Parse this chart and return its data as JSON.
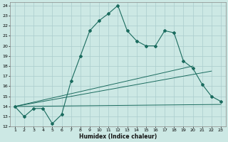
{
  "xlabel": "Humidex (Indice chaleur)",
  "bg_color": "#cce8e4",
  "grid_color": "#aacccc",
  "line_color": "#1a6b5e",
  "xlim": [
    0.5,
    23.5
  ],
  "ylim": [
    12,
    24.3
  ],
  "xtick_labels": [
    "1",
    "2",
    "3",
    "4",
    "5",
    "6",
    "7",
    "8",
    "9",
    "10",
    "11",
    "12",
    "13",
    "14",
    "15",
    "16",
    "17",
    "18",
    "19",
    "20",
    "21",
    "22",
    "23"
  ],
  "xtick_vals": [
    1,
    2,
    3,
    4,
    5,
    6,
    7,
    8,
    9,
    10,
    11,
    12,
    13,
    14,
    15,
    16,
    17,
    18,
    19,
    20,
    21,
    22,
    23
  ],
  "ytick_vals": [
    12,
    13,
    14,
    15,
    16,
    17,
    18,
    19,
    20,
    21,
    22,
    23,
    24
  ],
  "line1_x": [
    1,
    2,
    3,
    4,
    5,
    6,
    7,
    8,
    9,
    10,
    11,
    12,
    13,
    14,
    15,
    16,
    17,
    18,
    19,
    20,
    21,
    22,
    23
  ],
  "line1_y": [
    14.0,
    13.0,
    13.8,
    13.8,
    12.3,
    13.2,
    16.5,
    19.0,
    21.5,
    22.5,
    23.2,
    24.0,
    21.5,
    20.5,
    20.0,
    20.0,
    21.5,
    21.3,
    18.5,
    17.8,
    16.2,
    15.0,
    14.5
  ],
  "line2_x": [
    1,
    20
  ],
  "line2_y": [
    14.0,
    18.0
  ],
  "line3_x": [
    1,
    22
  ],
  "line3_y": [
    14.0,
    17.5
  ],
  "line4_x": [
    1,
    23
  ],
  "line4_y": [
    14.0,
    14.2
  ]
}
